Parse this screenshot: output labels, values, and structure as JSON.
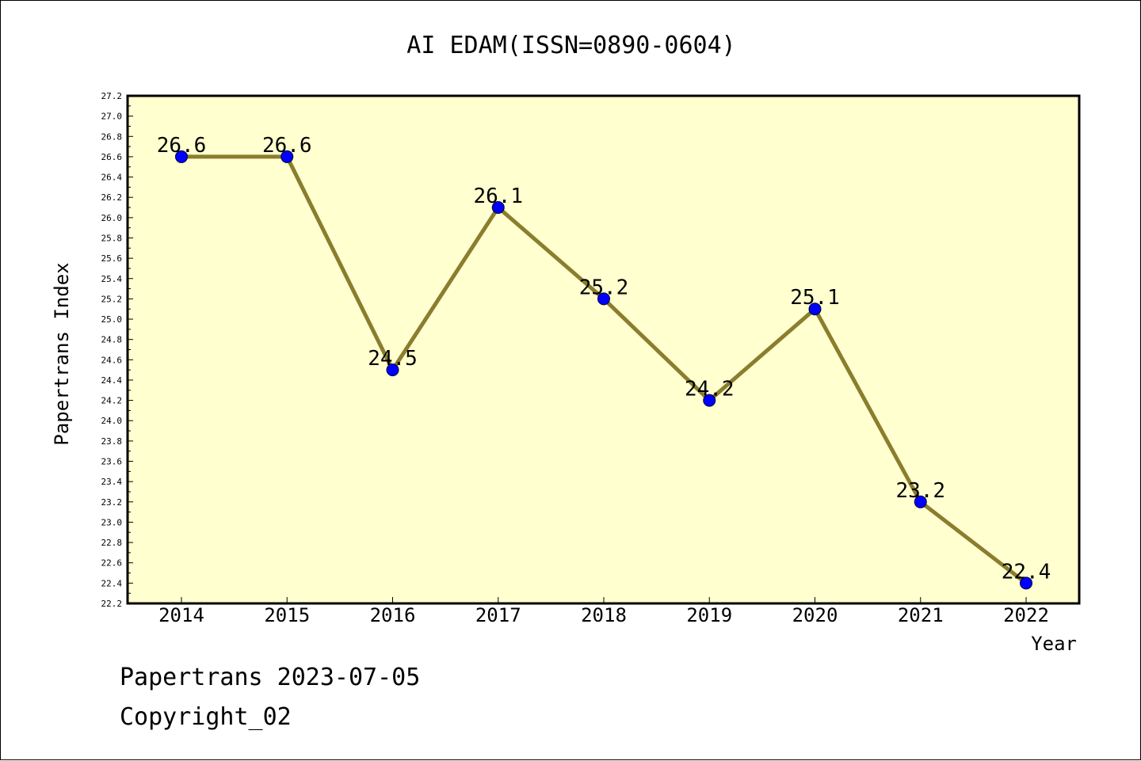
{
  "chart_data": {
    "type": "line",
    "title": "AI EDAM(ISSN=0890-0604)",
    "xlabel": "Year",
    "ylabel": "Papertrans Index",
    "categories": [
      "2014",
      "2015",
      "2016",
      "2017",
      "2018",
      "2019",
      "2020",
      "2021",
      "2022"
    ],
    "values": [
      26.6,
      26.6,
      24.5,
      26.1,
      25.2,
      24.2,
      25.1,
      23.2,
      22.4
    ],
    "data_labels": [
      "26.6",
      "26.6",
      "24.5",
      "26.1",
      "25.2",
      "24.2",
      "25.1",
      "23.2",
      "22.4"
    ],
    "ylim": [
      22.2,
      27.2
    ],
    "y_tick_step": 0.2,
    "grid": false,
    "colors": {
      "plot_background": "#ffffd0",
      "line": "#8b7d2e",
      "marker": "#0000ff"
    }
  },
  "footer": {
    "line1": "Papertrans 2023-07-05",
    "line2": "Copyright_02"
  }
}
